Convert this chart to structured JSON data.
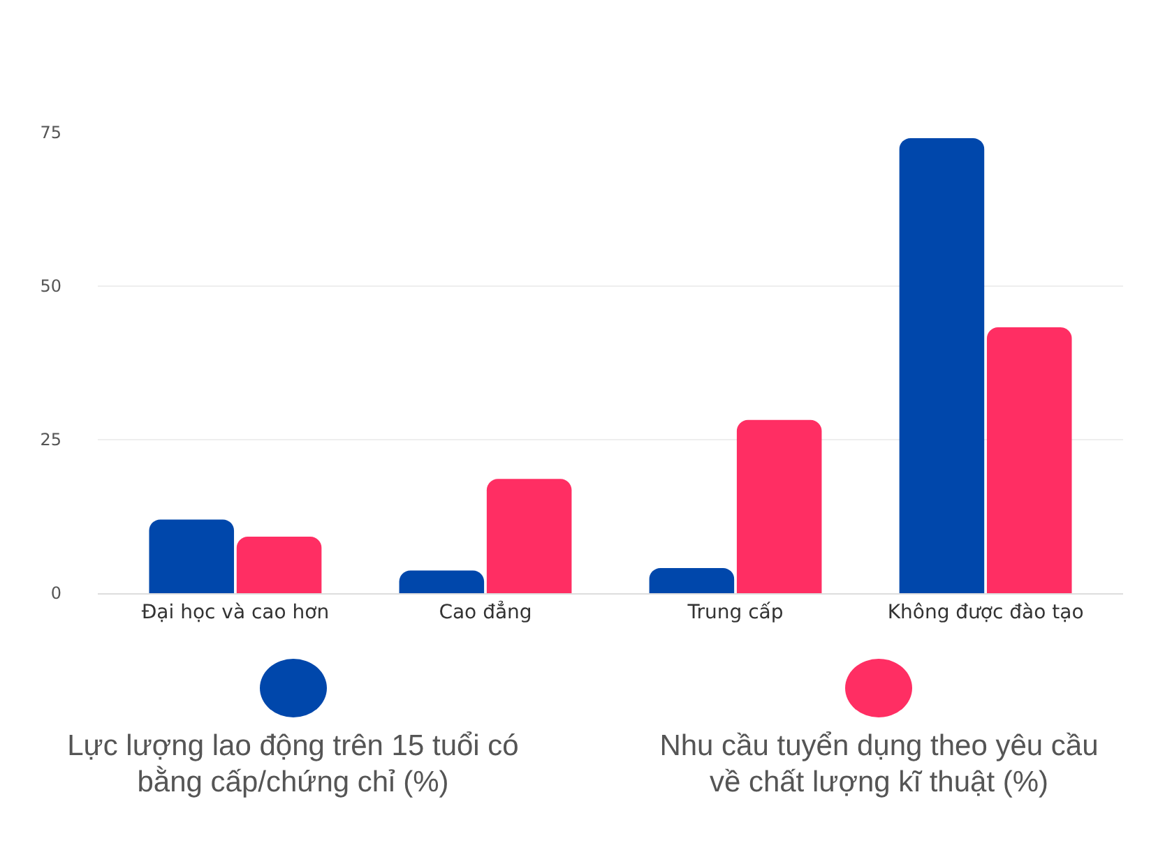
{
  "chart_data": {
    "type": "bar",
    "categories": [
      "Đại học và cao hơn",
      "Cao đẳng",
      "Trung cấp",
      "Không được đào tạo"
    ],
    "series": [
      {
        "name": "Lực lượng lao động trên 15 tuổi có bằng cấp/chứng chỉ (%)",
        "color": "#0047ab",
        "values": [
          12,
          3.7,
          4.1,
          74.1
        ]
      },
      {
        "name": "Nhu cầu tuyển dụng theo yêu cầu về chất lượng kĩ thuật (%)",
        "color": "#ff2e63",
        "values": [
          9.2,
          18.6,
          28.2,
          43.3
        ]
      }
    ],
    "ylim": [
      0,
      75
    ],
    "yticks": [
      0,
      25,
      50,
      75
    ],
    "grid": "y",
    "legend": "bottom"
  }
}
